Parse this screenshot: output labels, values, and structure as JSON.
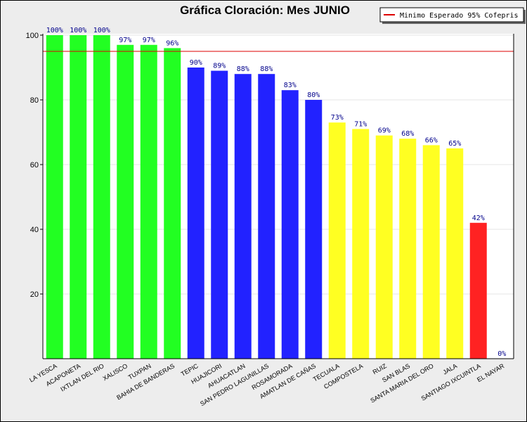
{
  "chart_data": {
    "type": "bar",
    "title": "Gráfica Cloración: Mes JUNIO",
    "categories": [
      "LA YESCA",
      "ACAPONETA",
      "IXTLAN DEL RIO",
      "XALISCO",
      "TUXPAN",
      "BAHIA DE BANDERAS",
      "TEPIC",
      "HUAJICORI",
      "AHUACATLAN",
      "SAN PEDRO LAGUNILLAS",
      "ROSAMORADA",
      "AMATLAN DE CAÑAS",
      "TECUALA",
      "COMPOSTELA",
      "RUIZ",
      "SAN BLAS",
      "SANTA MARIA DEL ORO",
      "JALA",
      "SANTIAGO IXCUINTLA",
      "EL NAYAR"
    ],
    "values": [
      100,
      100,
      100,
      97,
      97,
      96,
      90,
      89,
      88,
      88,
      83,
      80,
      73,
      71,
      69,
      68,
      66,
      65,
      42,
      0
    ],
    "value_labels": [
      "100%",
      "100%",
      "100%",
      "97%",
      "97%",
      "96%",
      "90%",
      "89%",
      "88%",
      "88%",
      "83%",
      "80%",
      "73%",
      "71%",
      "69%",
      "68%",
      "66%",
      "65%",
      "42%",
      "0%"
    ],
    "colors": [
      "#22ff22",
      "#22ff22",
      "#22ff22",
      "#22ff22",
      "#22ff22",
      "#22ff22",
      "#2222ff",
      "#2222ff",
      "#2222ff",
      "#2222ff",
      "#2222ff",
      "#2222ff",
      "#ffff22",
      "#ffff22",
      "#ffff22",
      "#ffff22",
      "#ffff22",
      "#ffff22",
      "#ff2222",
      "#ff2222"
    ],
    "ylim": [
      0,
      100
    ],
    "yticks": [
      "20",
      "40",
      "60",
      "80",
      "100"
    ],
    "threshold": {
      "value": 95,
      "label": "Minimo Esperado 95% Cofepris",
      "color": "#dd0000"
    },
    "legend_position": "top-right",
    "xlabel": "",
    "ylabel": ""
  }
}
